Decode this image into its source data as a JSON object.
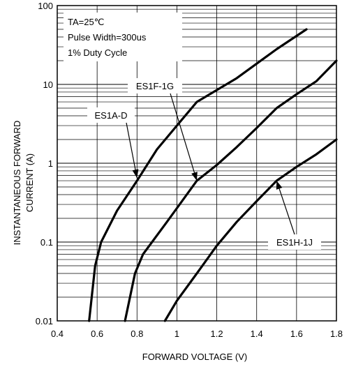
{
  "chart_data": {
    "type": "line",
    "xlabel": "FORWARD VOLTAGE (V)",
    "ylabel": "INSTANTANEOUS FORWARD\nCURRENT (A)",
    "xlim": [
      0.4,
      1.8
    ],
    "ylim": [
      0.01,
      100
    ],
    "yscale": "log",
    "x_ticks": [
      "0.4",
      "0.6",
      "0.8",
      "1",
      "1.2",
      "1.4",
      "1.6",
      "1.8"
    ],
    "y_ticks": [
      "0.01",
      "0.1",
      "1",
      "10",
      "100"
    ],
    "grid": "on",
    "conditions": [
      "TA=25℃",
      "Pulse Width=300us",
      "1% Duty Cycle"
    ],
    "series": [
      {
        "name": "ES1A-D",
        "x": [
          0.56,
          0.59,
          0.62,
          0.7,
          0.8,
          0.9,
          1.0,
          1.1,
          1.3,
          1.5,
          1.65
        ],
        "y": [
          0.01,
          0.05,
          0.1,
          0.25,
          0.6,
          1.5,
          3.0,
          6.0,
          12,
          28,
          50
        ]
      },
      {
        "name": "ES1F-1G",
        "x": [
          0.74,
          0.79,
          0.83,
          0.95,
          1.1,
          1.2,
          1.3,
          1.4,
          1.5,
          1.6,
          1.7,
          1.8
        ],
        "y": [
          0.01,
          0.04,
          0.07,
          0.18,
          0.6,
          0.95,
          1.6,
          2.8,
          5.0,
          7.5,
          11,
          20
        ]
      },
      {
        "name": "ES1H-1J",
        "x": [
          0.94,
          1.0,
          1.1,
          1.2,
          1.3,
          1.4,
          1.5,
          1.6,
          1.7,
          1.8
        ],
        "y": [
          0.01,
          0.018,
          0.04,
          0.09,
          0.18,
          0.33,
          0.6,
          0.9,
          1.3,
          2.0
        ]
      }
    ],
    "annotations": [
      {
        "label": "ES1A-D",
        "target": [
          0.8,
          0.65
        ]
      },
      {
        "label": "ES1F-1G",
        "target": [
          1.1,
          0.6
        ]
      },
      {
        "label": "ES1H-1J",
        "target": [
          1.5,
          0.6
        ]
      }
    ]
  }
}
